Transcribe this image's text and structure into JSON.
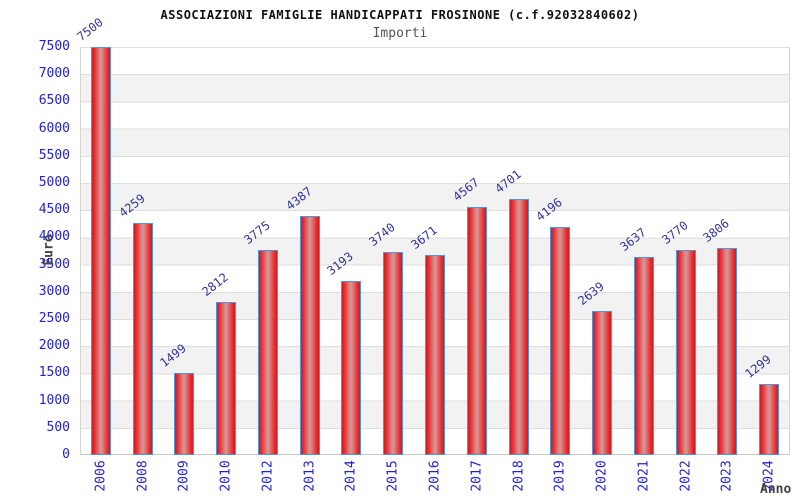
{
  "header": {
    "title": "ASSOCIAZIONI FAMIGLIE HANDICAPPATI FROSINONE (c.f.92032840602)",
    "subtitle": "Importi"
  },
  "chart_data": {
    "type": "bar",
    "title": "ASSOCIAZIONI FAMIGLIE HANDICAPPATI FROSINONE (c.f.92032840602)",
    "subtitle": "Importi",
    "xlabel": "Anno",
    "ylabel": "Euro",
    "categories": [
      "2006",
      "2008",
      "2009",
      "2010",
      "2012",
      "2013",
      "2014",
      "2015",
      "2016",
      "2017",
      "2018",
      "2019",
      "2020",
      "2021",
      "2022",
      "2023",
      "2024"
    ],
    "values": [
      7500,
      4259,
      1499,
      2812,
      3775,
      4387,
      3193,
      3740,
      3671,
      4567,
      4701,
      4196,
      2639,
      3637,
      3770,
      3806,
      1299
    ],
    "ylim": [
      0,
      7500
    ],
    "ytick_step": 500,
    "grid": "horizontal-bands",
    "legend_position": "none",
    "colors": {
      "bar_edge_red": "#c62026",
      "bar_bright_red": "#e8272b",
      "bar_center_pink": "#d98f8f",
      "bar_border_blue": "#4f97dd",
      "axis_tick_blue": "#2222cc",
      "value_label_navy": "#333399",
      "axis_title_gray": "#444444",
      "band_gray": "#f2f2f2",
      "gridline_gray": "#dedede"
    }
  }
}
